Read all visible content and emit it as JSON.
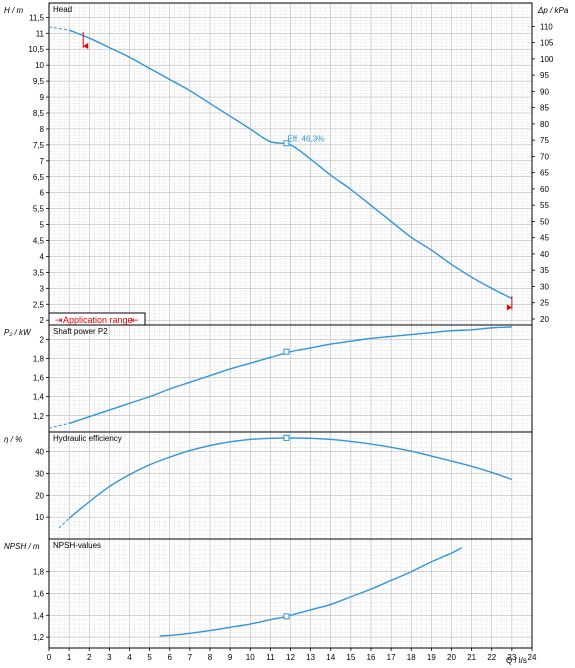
{
  "chart_data": [
    {
      "type": "line",
      "panel_title": "Head",
      "ylabel": "H / m",
      "ylabel_right": "Δp / kPa",
      "xlim": [
        0,
        24
      ],
      "ylim": [
        1.85,
        11.95
      ],
      "yticks": [
        "2",
        "2,5",
        "3",
        "3,5",
        "4",
        "4,5",
        "5",
        "5,5",
        "6",
        "6,5",
        "7",
        "7,5",
        "8",
        "8,5",
        "9",
        "9,5",
        "10",
        "10,5",
        "11",
        "11,5"
      ],
      "ytick_values": [
        2,
        2.5,
        3,
        3.5,
        4,
        4.5,
        5,
        5.5,
        6,
        6.5,
        7,
        7.5,
        8,
        8.5,
        9,
        9.5,
        10,
        10.5,
        11,
        11.5
      ],
      "yticks_right": [
        "20",
        "25",
        "30",
        "35",
        "40",
        "45",
        "50",
        "55",
        "60",
        "65",
        "70",
        "75",
        "80",
        "85",
        "90",
        "95",
        "100",
        "105",
        "110"
      ],
      "ytick_right_values": [
        20,
        25,
        30,
        35,
        40,
        45,
        50,
        55,
        60,
        65,
        70,
        75,
        80,
        85,
        90,
        95,
        100,
        105,
        110
      ],
      "x": [
        0,
        1,
        2,
        3,
        4,
        5,
        6,
        7,
        8,
        9,
        10,
        11,
        12,
        13,
        14,
        15,
        16,
        17,
        18,
        19,
        20,
        21,
        22,
        23
      ],
      "y": [
        11.2,
        11.1,
        10.85,
        10.55,
        10.25,
        9.9,
        9.55,
        9.2,
        8.8,
        8.4,
        8.0,
        7.6,
        7.5,
        7.05,
        6.55,
        6.1,
        5.6,
        5.1,
        4.6,
        4.2,
        3.75,
        3.35,
        3.0,
        2.68
      ],
      "dashed_until_x": 1.2,
      "marker": {
        "x": 11.8,
        "y": 7.55
      },
      "annotation": "Eff.  46,3%",
      "range_markers": [
        {
          "x": 1.7,
          "y": 10.6
        },
        {
          "x": 23,
          "y": 2.4
        }
      ],
      "legend": "Application range"
    },
    {
      "type": "line",
      "panel_title": "Shaft power P2",
      "ylabel": "P₂ / kW",
      "xlim": [
        0,
        24
      ],
      "ylim": [
        1.03,
        2.15
      ],
      "yticks": [
        "1,2",
        "1,4",
        "1,6",
        "1,8",
        "2"
      ],
      "ytick_values": [
        1.2,
        1.4,
        1.6,
        1.8,
        2
      ],
      "x": [
        0,
        1,
        2,
        3,
        4,
        5,
        6,
        7,
        8,
        9,
        10,
        11,
        12,
        13,
        14,
        15,
        16,
        17,
        18,
        19,
        20,
        21,
        22,
        23
      ],
      "y": [
        1.07,
        1.12,
        1.19,
        1.26,
        1.33,
        1.4,
        1.48,
        1.55,
        1.62,
        1.69,
        1.75,
        1.81,
        1.87,
        1.91,
        1.95,
        1.98,
        2.01,
        2.03,
        2.05,
        2.07,
        2.09,
        2.1,
        2.12,
        2.13
      ],
      "dashed_until_x": 1.5,
      "marker": {
        "x": 11.8,
        "y": 1.87
      }
    },
    {
      "type": "line",
      "panel_title": "Hydraulic efficiency",
      "ylabel": "η / %",
      "xlim": [
        0,
        24
      ],
      "ylim": [
        0,
        49
      ],
      "yticks": [
        "10",
        "20",
        "30",
        "40"
      ],
      "ytick_values": [
        10,
        20,
        30,
        40
      ],
      "x": [
        0.5,
        1,
        2,
        3,
        4,
        5,
        6,
        7,
        8,
        9,
        10,
        11,
        11.8,
        13,
        14,
        15,
        16,
        17,
        18,
        19,
        20,
        21,
        22,
        23
      ],
      "y": [
        5,
        9.5,
        17,
        24,
        29.5,
        34,
        37.5,
        40.5,
        42.8,
        44.5,
        45.6,
        46.1,
        46.3,
        46.1,
        45.6,
        44.7,
        43.5,
        42,
        40.2,
        38,
        35.7,
        33.3,
        30.5,
        27.3
      ],
      "dashed_until_x": 1.5,
      "marker": {
        "x": 11.8,
        "y": 46.3
      }
    },
    {
      "type": "line",
      "panel_title": "NPSH-values",
      "ylabel": "NPSH / m",
      "xlim": [
        0,
        24
      ],
      "ylim": [
        1.1,
        2.1
      ],
      "yticks": [
        "1,2",
        "1,4",
        "1,6",
        "1,8"
      ],
      "ytick_values": [
        1.2,
        1.4,
        1.6,
        1.8
      ],
      "x": [
        5.5,
        6,
        7,
        8,
        9,
        10,
        11,
        11.8,
        13,
        14,
        15,
        16,
        17,
        18,
        19,
        20,
        20.5
      ],
      "y": [
        1.21,
        1.215,
        1.235,
        1.26,
        1.29,
        1.32,
        1.36,
        1.39,
        1.45,
        1.5,
        1.57,
        1.64,
        1.72,
        1.8,
        1.89,
        1.97,
        2.02
      ],
      "marker": {
        "x": 11.8,
        "y": 1.39
      }
    }
  ],
  "x_axis": {
    "label": "Q / l/s",
    "ticks": [
      "0",
      "1",
      "2",
      "3",
      "4",
      "5",
      "6",
      "7",
      "8",
      "9",
      "10",
      "11",
      "12",
      "13",
      "14",
      "15",
      "16",
      "17",
      "18",
      "19",
      "20",
      "21",
      "22",
      "23",
      "24"
    ],
    "tick_values": [
      0,
      1,
      2,
      3,
      4,
      5,
      6,
      7,
      8,
      9,
      10,
      11,
      12,
      13,
      14,
      15,
      16,
      17,
      18,
      19,
      20,
      21,
      22,
      23,
      24
    ]
  },
  "colors": {
    "curve": "#2f95dc",
    "grid": "#cfcfcf",
    "border": "#000000",
    "range": "#e00000",
    "annotation": "#2f95dc"
  }
}
